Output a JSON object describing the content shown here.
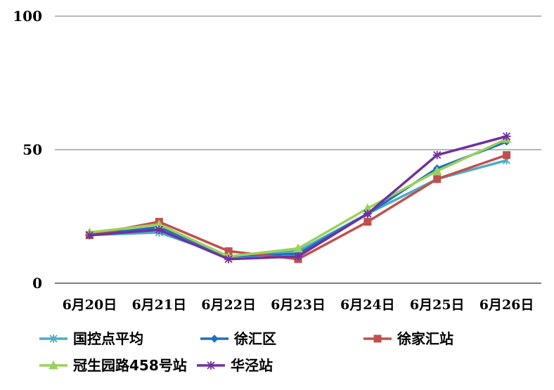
{
  "chart_data": {
    "type": "line",
    "title": "",
    "xlabel": "",
    "ylabel": "",
    "categories": [
      "6月20日",
      "6月21日",
      "6月22日",
      "6月23日",
      "6月24日",
      "6月25日",
      "6月26日"
    ],
    "ylim": [
      0,
      100
    ],
    "yticks": [
      "0",
      "50",
      "100"
    ],
    "grid": "horizontal",
    "legend_position": "bottom",
    "series": [
      {
        "name": "国控点平均",
        "color": "#4bacc6",
        "marker": "asterisk",
        "values": [
          18,
          19,
          10,
          12,
          26,
          39,
          46
        ]
      },
      {
        "name": "徐汇区",
        "color": "#1f6fbf",
        "marker": "diamond",
        "values": [
          18,
          21,
          10,
          11,
          26,
          43,
          53
        ]
      },
      {
        "name": "徐家汇站",
        "color": "#c0504d",
        "marker": "square",
        "values": [
          18,
          23,
          12,
          9,
          23,
          39,
          48
        ]
      },
      {
        "name": "冠生园路458号站",
        "color": "#9bd15a",
        "marker": "triangle",
        "values": [
          19,
          22,
          10,
          13,
          28,
          42,
          54
        ]
      },
      {
        "name": "华泾站",
        "color": "#7030a0",
        "marker": "x-star",
        "values": [
          18,
          20,
          9,
          10,
          26,
          48,
          55
        ]
      }
    ]
  }
}
